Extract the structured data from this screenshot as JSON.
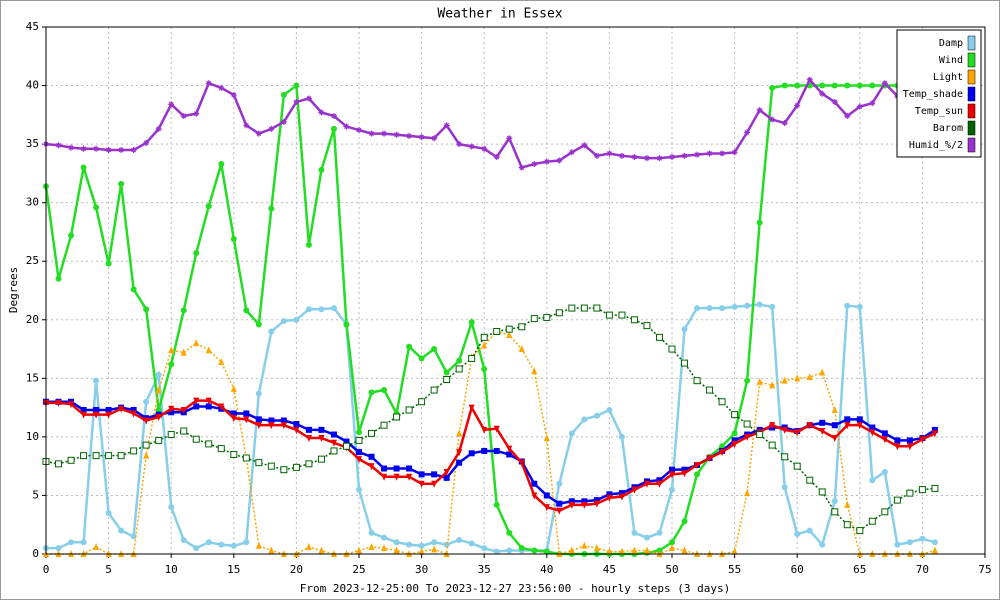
{
  "chart_data": {
    "type": "line",
    "title": "Weather in Essex",
    "y_label": "Degrees",
    "x_label": "From 2023-12-25:00 To 2023-12-27 23:56:00 - hourly steps (3 days)",
    "x": [
      0,
      1,
      2,
      3,
      4,
      5,
      6,
      7,
      8,
      9,
      10,
      11,
      12,
      13,
      14,
      15,
      16,
      17,
      18,
      19,
      20,
      21,
      22,
      23,
      24,
      25,
      26,
      27,
      28,
      29,
      30,
      31,
      32,
      33,
      34,
      35,
      36,
      37,
      38,
      39,
      40,
      41,
      42,
      43,
      44,
      45,
      46,
      47,
      48,
      49,
      50,
      51,
      52,
      53,
      54,
      55,
      56,
      57,
      58,
      59,
      60,
      61,
      62,
      63,
      64,
      65,
      66,
      67,
      68,
      69,
      70,
      71
    ],
    "xlim": [
      0,
      75
    ],
    "ylim": [
      0,
      45
    ],
    "xticks": [
      0,
      5,
      10,
      15,
      20,
      25,
      30,
      35,
      40,
      45,
      50,
      55,
      60,
      65,
      70,
      75
    ],
    "yticks": [
      0,
      5,
      10,
      15,
      20,
      25,
      30,
      35,
      40,
      45
    ],
    "grid": true,
    "legend": "upper right",
    "series": [
      {
        "name": "Damp",
        "color": "#87ceeb",
        "marker": "circle",
        "dash": false,
        "values": [
          0.5,
          0.5,
          1,
          1,
          14.8,
          3.5,
          2,
          1.5,
          13,
          15.3,
          4,
          1.2,
          0.5,
          1,
          0.8,
          0.7,
          1,
          13.7,
          19,
          19.9,
          20,
          20.9,
          20.9,
          21,
          19.6,
          5.5,
          1.8,
          1.4,
          1,
          0.8,
          0.7,
          1,
          0.8,
          1.2,
          0.9,
          0.5,
          0.2,
          0.3,
          0.3,
          0.3,
          0.3,
          6,
          10.3,
          11.5,
          11.8,
          12.3,
          10,
          1.8,
          1.4,
          1.8,
          5.5,
          19.2,
          21,
          21,
          21,
          21.1,
          21.2,
          21.3,
          21.1,
          5.7,
          1.7,
          2,
          0.8,
          4.5,
          21.2,
          21.1,
          6.3,
          7,
          0.8,
          1,
          1.3,
          1
        ]
      },
      {
        "name": "Wind",
        "color": "#22dd22",
        "marker": "circle",
        "dash": false,
        "values": [
          31.4,
          23.5,
          27.2,
          33,
          29.6,
          24.8,
          31.6,
          22.6,
          20.9,
          12.3,
          16.2,
          20.8,
          25.7,
          29.7,
          33.3,
          26.9,
          20.8,
          19.6,
          29.5,
          39.2,
          40,
          26.4,
          32.8,
          36.3,
          19.6,
          10.4,
          13.8,
          14,
          12,
          17.7,
          16.7,
          17.5,
          15.5,
          16.5,
          19.8,
          15.8,
          4.2,
          1.8,
          0.5,
          0.3,
          0.2,
          0,
          0,
          0,
          0,
          0,
          0,
          0,
          0.1,
          0.3,
          1,
          2.8,
          6.8,
          8.3,
          9.2,
          10.3,
          14.8,
          28.3,
          39.8,
          40,
          40,
          40,
          40,
          40,
          40,
          40,
          40,
          40,
          40,
          40,
          40,
          40
        ]
      },
      {
        "name": "Light",
        "color": "#ffa500",
        "marker": "triangle",
        "dash": true,
        "values": [
          0,
          0,
          0,
          0,
          0.6,
          0,
          0,
          0,
          8.4,
          14,
          17.4,
          17.2,
          18,
          17.4,
          16.4,
          14.1,
          8.2,
          0.7,
          0.3,
          0,
          0,
          0.6,
          0.3,
          0,
          0,
          0.3,
          0.6,
          0.5,
          0.3,
          0,
          0.2,
          0.4,
          0,
          10.3,
          16.8,
          17.8,
          19,
          18.7,
          17.5,
          15.6,
          9.9,
          0,
          0.3,
          0.7,
          0.5,
          0.2,
          0.2,
          0.3,
          0.3,
          0,
          0.5,
          0.3,
          0,
          0,
          0,
          0.2,
          5.2,
          14.7,
          14.4,
          14.8,
          15,
          15.1,
          15.5,
          12.3,
          4.2,
          0,
          0,
          0,
          0,
          0,
          0,
          0.3
        ]
      },
      {
        "name": "Temp_shade",
        "color": "#0000ee",
        "marker": "square",
        "dash": false,
        "values": [
          13,
          13,
          13,
          12.3,
          12.3,
          12.3,
          12.5,
          12.3,
          11.6,
          11.9,
          12.1,
          12.1,
          12.6,
          12.6,
          12.4,
          12,
          12,
          11.5,
          11.4,
          11.4,
          11.1,
          10.6,
          10.6,
          10.2,
          9.6,
          8.7,
          8.3,
          7.3,
          7.3,
          7.3,
          6.8,
          6.8,
          6.5,
          7.8,
          8.6,
          8.8,
          8.8,
          8.5,
          7.9,
          6,
          5,
          4.3,
          4.5,
          4.5,
          4.6,
          5.1,
          5.2,
          5.7,
          6.2,
          6.3,
          7.2,
          7.2,
          7.6,
          8.2,
          8.8,
          9.7,
          10.2,
          10.6,
          10.8,
          10.8,
          10.5,
          11,
          11.2,
          11,
          11.5,
          11.5,
          10.8,
          10.3,
          9.7,
          9.7,
          9.9,
          10.6
        ]
      },
      {
        "name": "Temp_sun",
        "color": "#ee0000",
        "marker": "triangle-down",
        "dash": false,
        "values": [
          12.9,
          12.9,
          12.8,
          11.9,
          11.9,
          11.9,
          12.4,
          12,
          11.4,
          11.7,
          12.4,
          12.3,
          13.1,
          13.1,
          12.6,
          11.6,
          11.5,
          11,
          11,
          11,
          10.6,
          9.9,
          9.9,
          9.5,
          9.1,
          8.1,
          7.5,
          6.6,
          6.6,
          6.6,
          6,
          6,
          7,
          8.7,
          12.5,
          10.6,
          10.7,
          9,
          7.8,
          5,
          4,
          3.7,
          4.2,
          4.2,
          4.3,
          4.8,
          4.9,
          5.5,
          6,
          6,
          6.8,
          6.9,
          7.6,
          8.2,
          8.7,
          9.4,
          10,
          10.4,
          11,
          10.6,
          10.4,
          11,
          10.5,
          9.9,
          11,
          11,
          10.4,
          9.8,
          9.2,
          9.2,
          9.8,
          10.3
        ]
      },
      {
        "name": "Barom",
        "color": "#006400",
        "marker": "square-open",
        "dash": true,
        "values": [
          7.9,
          7.7,
          8,
          8.4,
          8.4,
          8.4,
          8.4,
          8.8,
          9.3,
          9.7,
          10.2,
          10.5,
          9.8,
          9.4,
          9,
          8.5,
          8.2,
          7.8,
          7.5,
          7.2,
          7.4,
          7.7,
          8.1,
          8.8,
          9.2,
          9.7,
          10.3,
          11,
          11.7,
          12.3,
          13,
          14,
          14.9,
          15.8,
          16.7,
          18.5,
          19,
          19.2,
          19.4,
          20.1,
          20.2,
          20.6,
          21,
          21,
          21,
          20.4,
          20.4,
          20,
          19.5,
          18.5,
          17.5,
          16.3,
          14.8,
          14,
          13,
          11.9,
          11.1,
          10.2,
          9.3,
          8.3,
          7.5,
          6.3,
          5.3,
          3.6,
          2.5,
          2,
          2.8,
          3.6,
          4.6,
          5.2,
          5.5,
          5.6
        ]
      },
      {
        "name": "Humid_%/2",
        "color": "#9932cc",
        "marker": "cross",
        "dash": false,
        "values": [
          35,
          34.9,
          34.7,
          34.6,
          34.6,
          34.5,
          34.5,
          34.5,
          35.1,
          36.3,
          38.4,
          37.4,
          37.6,
          40.2,
          39.8,
          39.2,
          36.6,
          35.9,
          36.3,
          36.9,
          38.6,
          38.9,
          37.7,
          37.4,
          36.5,
          36.2,
          35.9,
          35.9,
          35.8,
          35.7,
          35.6,
          35.5,
          36.6,
          35,
          34.8,
          34.6,
          33.9,
          35.5,
          33,
          33.3,
          33.5,
          33.6,
          34.3,
          34.9,
          34,
          34.2,
          34,
          33.9,
          33.8,
          33.8,
          33.9,
          34,
          34.1,
          34.2,
          34.2,
          34.3,
          36,
          37.9,
          37.1,
          36.8,
          38.3,
          40.5,
          39.3,
          38.6,
          37.4,
          38.2,
          38.5,
          40.2,
          39.1,
          39.5,
          39.8,
          39.6
        ]
      }
    ]
  }
}
